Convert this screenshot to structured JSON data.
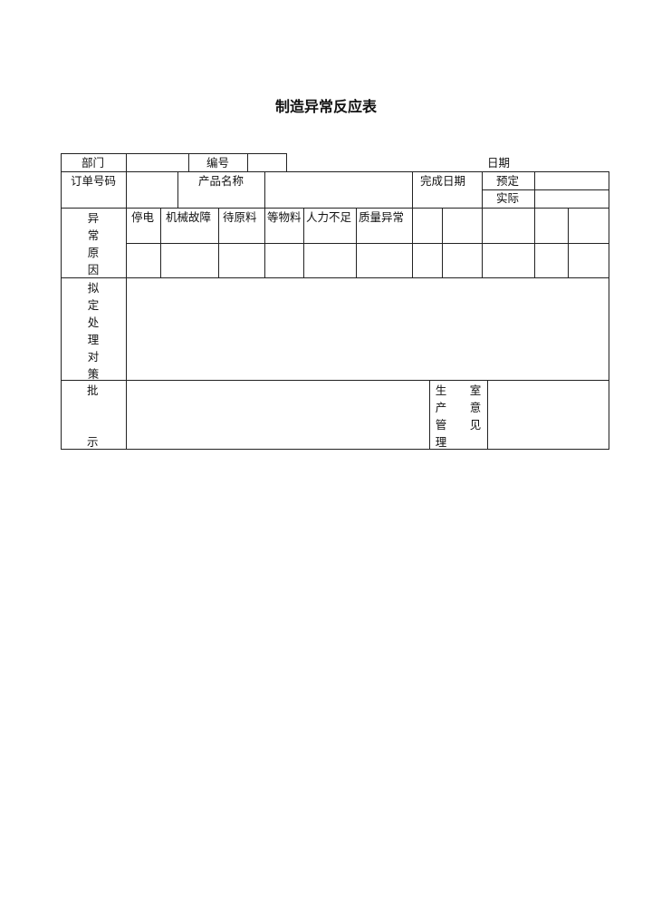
{
  "title": "制造异常反应表",
  "row1": {
    "dept": "部门",
    "number": "编号",
    "date": "日期"
  },
  "row2": {
    "order_no": "订单号码",
    "product_name": "产品名称",
    "completion_date": "完成日期",
    "planned": "预定",
    "actual": "实际"
  },
  "cause": {
    "label": [
      "异",
      "常",
      "原",
      "因"
    ],
    "items": [
      "停电",
      "机械故障",
      "待原料",
      "等物料",
      "人力不足",
      "质量异常"
    ]
  },
  "measures": {
    "label": [
      "拟",
      "定",
      "处",
      "理",
      "对",
      "策"
    ]
  },
  "approval": {
    "label_top": "批",
    "label_bottom": "示",
    "prod_mgmt": [
      "生",
      "产",
      "管",
      "理"
    ],
    "opinion": [
      "室",
      "意",
      "见"
    ]
  }
}
